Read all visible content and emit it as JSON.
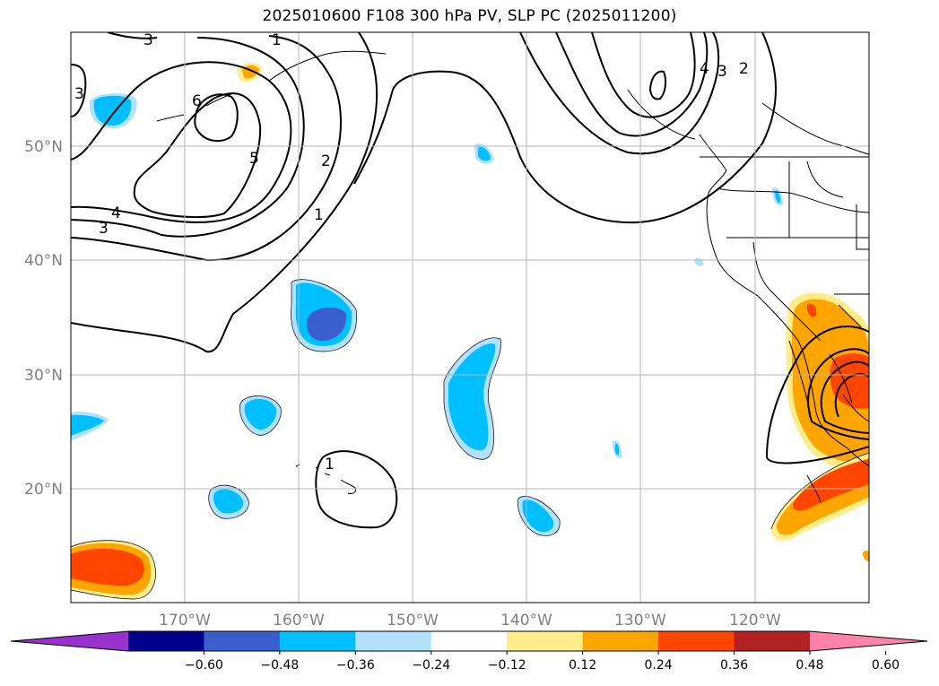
{
  "title": "2025010600 F108 300 hPa PV, SLP PC (2025011200)",
  "lat_labels": [
    "50°N",
    "40°N",
    "30°N",
    "20°N"
  ],
  "lon_labels": [
    "170°W",
    "160°W",
    "150°W",
    "140°W",
    "130°W",
    "120°W"
  ],
  "colorbar": {
    "ticks": [
      "−0.60",
      "−0.48",
      "−0.36",
      "−0.24",
      "−0.12",
      "0.12",
      "0.24",
      "0.36",
      "0.48",
      "0.60"
    ],
    "colors": [
      "#9932cc",
      "#00008b",
      "#3a5fcd",
      "#00bfff",
      "#b0e2ff",
      "#ffffff",
      "#ffec8b",
      "#ffa500",
      "#ff4500",
      "#b22222",
      "#ff82ab"
    ]
  },
  "contour_labels": [
    "3",
    "3",
    "4",
    "3",
    "6",
    "5",
    "2",
    "1",
    "1",
    "1",
    "4",
    "3",
    "2"
  ]
}
